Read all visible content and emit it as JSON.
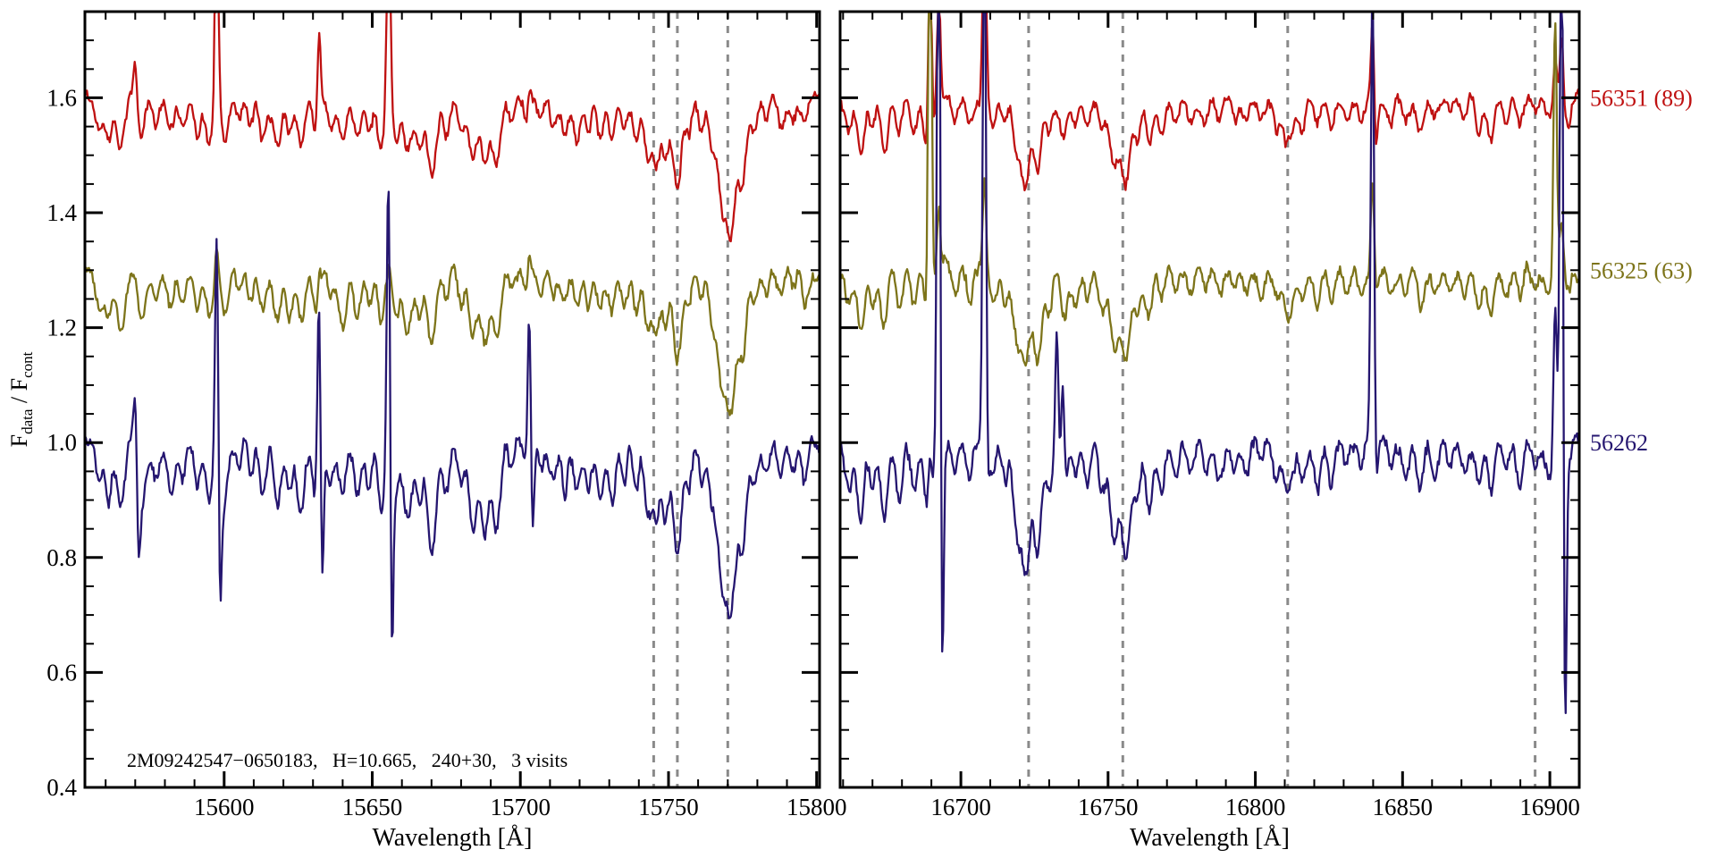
{
  "figure": {
    "background": "#ffffff",
    "frame_color": "#000000",
    "annotation": "2M09242547−0650183,   H=10.665,   240+30,   3 visits"
  },
  "chart_data": {
    "type": "line",
    "title": "",
    "ylabel": "F_data / F_cont",
    "ylabel_parts": {
      "main1": "F",
      "sub1": "data",
      "main2": " / F",
      "sub2": "cont"
    },
    "ylim": [
      0.4,
      1.75
    ],
    "yticks": [
      "0.4",
      "0.6",
      "0.8",
      "1.0",
      "1.2",
      "1.4",
      "1.6"
    ],
    "ytick_minor_step": 0.05,
    "dashed_line_color": "#8a8a8a",
    "sample_step_angstrom": 0.35,
    "legend_position": "right-outside",
    "series": [
      {
        "label": "56351 (89)",
        "color": "#bf1111",
        "offset": 0.6,
        "continuum": 1.6,
        "depth_scale": 0.75,
        "noise": 0.011,
        "seed": 7
      },
      {
        "label": "56325 (63)",
        "color": "#7d741a",
        "offset": 0.3,
        "continuum": 1.3,
        "depth_scale": 0.8,
        "noise": 0.012,
        "seed": 19
      },
      {
        "label": "56262",
        "color": "#251670",
        "offset": 0.0,
        "continuum": 1.0,
        "depth_scale": 1.0,
        "noise": 0.014,
        "seed": 41
      }
    ],
    "panels": [
      {
        "xlabel": "Wavelength [Å]",
        "xlim": [
          15553,
          15801
        ],
        "xticks": [
          15600,
          15650,
          15700,
          15750,
          15800
        ],
        "xtick_minor_step": 10,
        "dashed_lines": [
          15745,
          15753,
          15770
        ],
        "absorption_lines": [
          [
            15558,
            0.07,
            1.2
          ],
          [
            15561,
            0.1,
            1.0
          ],
          [
            15565,
            0.12,
            1.3
          ],
          [
            15572,
            0.11,
            1.2
          ],
          [
            15577,
            0.06,
            1.0
          ],
          [
            15582,
            0.08,
            1.2
          ],
          [
            15586,
            0.07,
            1.0
          ],
          [
            15591,
            0.08,
            1.0
          ],
          [
            15595,
            0.1,
            1.2
          ],
          [
            15600,
            0.09,
            1.2
          ],
          [
            15605,
            0.05,
            1.0
          ],
          [
            15609,
            0.07,
            0.9
          ],
          [
            15613,
            0.09,
            1.1
          ],
          [
            15618,
            0.1,
            1.2
          ],
          [
            15622,
            0.09,
            1.0
          ],
          [
            15626,
            0.11,
            1.3
          ],
          [
            15631,
            0.1,
            1.0
          ],
          [
            15636,
            0.06,
            1.0
          ],
          [
            15640,
            0.1,
            1.2
          ],
          [
            15645,
            0.1,
            1.1
          ],
          [
            15649,
            0.08,
            1.0
          ],
          [
            15653,
            0.11,
            1.2
          ],
          [
            15658,
            0.09,
            1.0
          ],
          [
            15662,
            0.12,
            1.5
          ],
          [
            15666,
            0.1,
            1.0
          ],
          [
            15670,
            0.18,
            1.5
          ],
          [
            15675,
            0.08,
            1.0
          ],
          [
            15680,
            0.07,
            1.0
          ],
          [
            15684,
            0.14,
            1.3
          ],
          [
            15688,
            0.16,
            1.4
          ],
          [
            15692,
            0.15,
            1.3
          ],
          [
            15697,
            0.05,
            0.9
          ],
          [
            15702,
            0.05,
            0.8
          ],
          [
            15707,
            0.04,
            1.0
          ],
          [
            15711,
            0.06,
            1.0
          ],
          [
            15715,
            0.08,
            1.1
          ],
          [
            15719,
            0.09,
            1.1
          ],
          [
            15723,
            0.08,
            1.0
          ],
          [
            15727,
            0.09,
            1.1
          ],
          [
            15731,
            0.1,
            1.2
          ],
          [
            15735,
            0.08,
            1.0
          ],
          [
            15739,
            0.09,
            1.0
          ],
          [
            15743,
            0.13,
            1.2
          ],
          [
            15746,
            0.14,
            1.2
          ],
          [
            15749,
            0.12,
            1.0
          ],
          [
            15753,
            0.2,
            1.5
          ],
          [
            15757,
            0.08,
            0.9
          ],
          [
            15761,
            0.06,
            0.9
          ],
          [
            15765,
            0.12,
            1.3
          ],
          [
            15768,
            0.2,
            1.2
          ],
          [
            15771,
            0.3,
            1.6
          ],
          [
            15775,
            0.18,
            1.4
          ],
          [
            15779,
            0.08,
            1.0
          ],
          [
            15783,
            0.05,
            1.0
          ],
          [
            15788,
            0.06,
            1.0
          ],
          [
            15792,
            0.05,
            1.0
          ],
          [
            15796,
            0.06,
            1.0
          ]
        ],
        "emission_spikes": [
          {
            "x": 15570.0,
            "up": [
              0.07,
              0.0,
              0.11
            ],
            "down": [
              0,
              0,
              0.12
            ]
          },
          {
            "x": 15597.5,
            "up": [
              0.45,
              0.06,
              0.4
            ],
            "down": [
              0,
              0,
              0.25
            ]
          },
          {
            "x": 15632.0,
            "up": [
              0.15,
              0.04,
              0.34
            ],
            "down": [
              0,
              0,
              0.24
            ]
          },
          {
            "x": 15655.5,
            "up": [
              0.5,
              0.03,
              0.52
            ],
            "down": [
              0,
              0,
              0.38
            ]
          },
          {
            "x": 15703.0,
            "up": [
              0.03,
              0.05,
              0.26
            ],
            "down": [
              0,
              0,
              0.16
            ]
          }
        ]
      },
      {
        "xlabel": "Wavelength [Å]",
        "xlim": [
          16659,
          16910
        ],
        "xticks": [
          16700,
          16750,
          16800,
          16850,
          16900
        ],
        "xtick_minor_step": 10,
        "dashed_lines": [
          16723,
          16755,
          16811,
          16895
        ],
        "absorption_lines": [
          [
            16662,
            0.08,
            1.2
          ],
          [
            16666,
            0.13,
            1.2
          ],
          [
            16670,
            0.07,
            1.0
          ],
          [
            16674,
            0.13,
            1.2
          ],
          [
            16679,
            0.09,
            1.1
          ],
          [
            16684,
            0.08,
            1.1
          ],
          [
            16689,
            0.15,
            1.3
          ],
          [
            16698,
            0.05,
            1.0
          ],
          [
            16703,
            0.06,
            1.0
          ],
          [
            16711,
            0.06,
            1.0
          ],
          [
            16715,
            0.07,
            1.0
          ],
          [
            16719,
            0.14,
            1.3
          ],
          [
            16722,
            0.2,
            1.4
          ],
          [
            16726,
            0.18,
            1.4
          ],
          [
            16730,
            0.08,
            1.0
          ],
          [
            16735,
            0.1,
            1.2
          ],
          [
            16739,
            0.06,
            1.0
          ],
          [
            16743,
            0.06,
            1.0
          ],
          [
            16748,
            0.08,
            1.1
          ],
          [
            16752,
            0.16,
            1.4
          ],
          [
            16756,
            0.2,
            1.5
          ],
          [
            16760,
            0.1,
            1.1
          ],
          [
            16764,
            0.12,
            1.2
          ],
          [
            16768,
            0.08,
            1.0
          ],
          [
            16773,
            0.05,
            1.0
          ],
          [
            16778,
            0.04,
            1.0
          ],
          [
            16783,
            0.05,
            1.0
          ],
          [
            16788,
            0.06,
            1.1
          ],
          [
            16793,
            0.05,
            1.0
          ],
          [
            16797,
            0.05,
            1.0
          ],
          [
            16802,
            0.04,
            1.0
          ],
          [
            16807,
            0.06,
            1.0
          ],
          [
            16811,
            0.1,
            1.8
          ],
          [
            16816,
            0.06,
            1.0
          ],
          [
            16821,
            0.07,
            1.1
          ],
          [
            16826,
            0.07,
            1.1
          ],
          [
            16831,
            0.05,
            1.0
          ],
          [
            16836,
            0.05,
            1.0
          ],
          [
            16841,
            0.04,
            1.0
          ],
          [
            16846,
            0.05,
            1.0
          ],
          [
            16851,
            0.06,
            1.0
          ],
          [
            16856,
            0.09,
            1.2
          ],
          [
            16861,
            0.05,
            1.0
          ],
          [
            16866,
            0.04,
            1.0
          ],
          [
            16871,
            0.05,
            1.0
          ],
          [
            16876,
            0.08,
            1.1
          ],
          [
            16880,
            0.09,
            1.1
          ],
          [
            16885,
            0.05,
            1.0
          ],
          [
            16890,
            0.07,
            1.0
          ],
          [
            16895,
            0.05,
            1.0
          ],
          [
            16900,
            0.05,
            1.0
          ],
          [
            16906,
            0.05,
            1.0
          ]
        ],
        "emission_spikes": [
          {
            "x": 16689.5,
            "up": [
              0.4,
              0.9,
              0.1
            ]
          },
          {
            "x": 16692.5,
            "up": [
              0.2,
              0.1,
              1.2
            ],
            "down": [
              0,
              0,
              0.5
            ]
          },
          {
            "x": 16708.0,
            "up": [
              0.5,
              0.16,
              0.95
            ],
            "down": [
              0,
              0,
              0.1
            ]
          },
          {
            "x": 16732.6,
            "up": [
              0.0,
              0.0,
              0.23
            ]
          },
          {
            "x": 16734.6,
            "up": [
              0.0,
              0.0,
              0.2
            ]
          },
          {
            "x": 16839.8,
            "up": [
              0.14,
              0.19,
              0.8
            ],
            "down": [
              0.06,
              0,
              0.06
            ]
          },
          {
            "x": 16901.8,
            "up": [
              0.08,
              0.44,
              0.25
            ]
          },
          {
            "x": 16904.0,
            "up": [
              0.12,
              0.08,
              1.1
            ],
            "down": [
              0,
              0,
              0.55
            ]
          }
        ]
      }
    ]
  }
}
